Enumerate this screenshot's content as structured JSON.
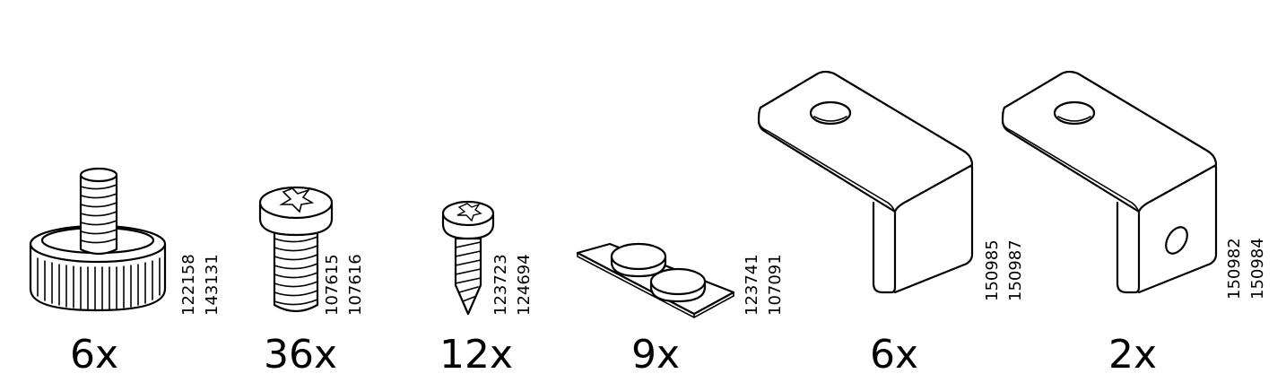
{
  "parts": [
    {
      "quantity": "6x",
      "codes": [
        "122158",
        "143131"
      ],
      "icon": "levelling-foot-icon"
    },
    {
      "quantity": "36x",
      "codes": [
        "107615",
        "107616"
      ],
      "icon": "machine-screw-icon"
    },
    {
      "quantity": "12x",
      "codes": [
        "123723",
        "124694"
      ],
      "icon": "wood-screw-icon"
    },
    {
      "quantity": "9x",
      "codes": [
        "123741",
        "107091"
      ],
      "icon": "felt-pad-icon"
    },
    {
      "quantity": "6x",
      "codes": [
        "150985",
        "150987"
      ],
      "icon": "angle-bracket-icon"
    },
    {
      "quantity": "2x",
      "codes": [
        "150982",
        "150984"
      ],
      "icon": "angle-bracket-hole-icon"
    }
  ]
}
